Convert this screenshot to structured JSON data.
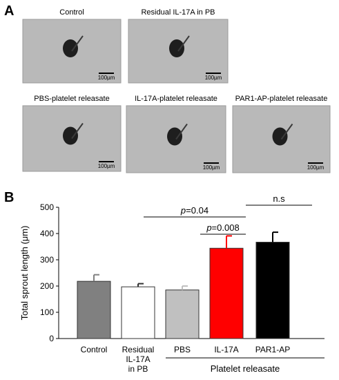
{
  "panel_labels": [
    "A",
    "B"
  ],
  "images": [
    {
      "caption": "Control",
      "scale_bar": "100µm"
    },
    {
      "caption": "Residual IL-17A in PB",
      "scale_bar": "100µm"
    },
    {
      "caption": "PBS-platelet releasate",
      "scale_bar": "100µm"
    },
    {
      "caption": "IL-17A-platelet releasate",
      "scale_bar": "100µm"
    },
    {
      "caption": "PAR1-AP-platelet releasate",
      "scale_bar": "100µm"
    }
  ],
  "chart_data": {
    "type": "bar",
    "y_label": "Total sprout length (μm)",
    "categories": [
      "Control",
      "Residual\nIL-17A\nin PB",
      "PBS",
      "IL-17A",
      "PAR1-AP"
    ],
    "values": [
      218,
      197,
      185,
      344,
      367
    ],
    "errors": [
      25,
      12,
      15,
      47,
      38
    ],
    "colors": [
      "#808080",
      "#ffffff",
      "#c0c0c0",
      "#ff0000",
      "#000000"
    ],
    "ylim": [
      0,
      500
    ],
    "yticks": [
      0,
      100,
      200,
      300,
      400,
      500
    ],
    "annotations": [
      {
        "text": "p=0.04",
        "from": 1,
        "to": 3
      },
      {
        "text": "p=0.008",
        "from": 2,
        "to": 3
      },
      {
        "text": "n.s",
        "from": 3,
        "to": 4
      }
    ],
    "group_label": "Platelet releasate"
  }
}
